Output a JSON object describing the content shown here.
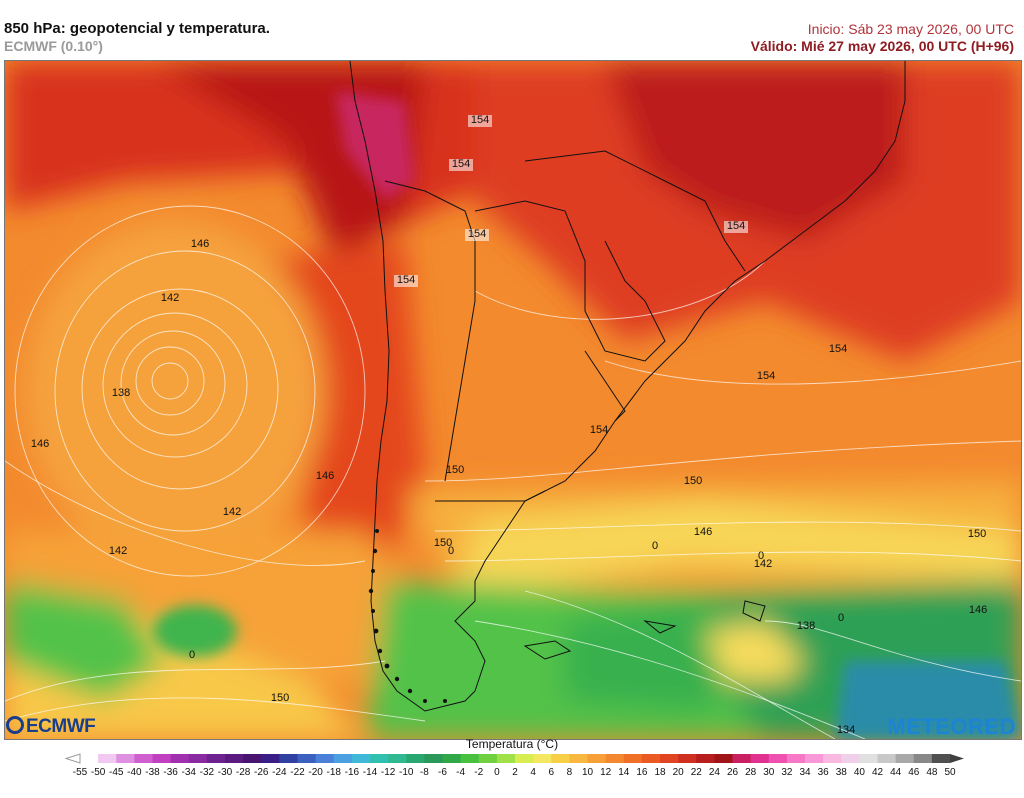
{
  "header": {
    "title": "850 hPa: geopotencial y temperatura.",
    "model": "ECMWF (0.10°)",
    "init": "Inicio: Sáb 23 may 2026, 00 UTC",
    "valid": "Válido: Mié 27 may 2026, 00 UTC (H+96)"
  },
  "logos": {
    "left": "ECMWF",
    "right": "METEORED"
  },
  "map": {
    "isohypse_labels": [
      "154",
      "154",
      "154",
      "146",
      "142",
      "138",
      "146",
      "146",
      "142",
      "142",
      "154",
      "154",
      "150",
      "150",
      "154",
      "154",
      "154",
      "150",
      "146",
      "142",
      "150",
      "146",
      "138",
      "150",
      "134",
      "0",
      "0",
      "0",
      "0",
      "0"
    ],
    "colors": {
      "land_outline": "#000000",
      "isohypse": "#ffffff"
    }
  },
  "legend": {
    "title": "Temperatura (°C)",
    "ticks": [
      "-55",
      "-50",
      "-45",
      "-40",
      "-38",
      "-36",
      "-34",
      "-32",
      "-30",
      "-28",
      "-26",
      "-24",
      "-22",
      "-20",
      "-18",
      "-16",
      "-14",
      "-12",
      "-10",
      "-8",
      "-6",
      "-4",
      "-2",
      "0",
      "2",
      "4",
      "6",
      "8",
      "10",
      "12",
      "14",
      "16",
      "18",
      "20",
      "22",
      "24",
      "26",
      "28",
      "30",
      "32",
      "34",
      "36",
      "38",
      "40",
      "42",
      "44",
      "46",
      "48",
      "50"
    ],
    "colors": [
      "#ffffff",
      "#f0c8f0",
      "#e090e0",
      "#d060d0",
      "#c040c0",
      "#a030b0",
      "#8a2aa0",
      "#6e2290",
      "#5a1a80",
      "#481470",
      "#3a1e88",
      "#3040a0",
      "#3a60c0",
      "#4a80d8",
      "#4aa0e0",
      "#40b8d8",
      "#30c0b0",
      "#30b890",
      "#28a870",
      "#2a9858",
      "#30a848",
      "#48c040",
      "#70d040",
      "#a0e048",
      "#d8ee50",
      "#f4e860",
      "#f8d048",
      "#f8b840",
      "#f8a038",
      "#f48830",
      "#f07028",
      "#ec5a24",
      "#e04420",
      "#d03020",
      "#b81e1e",
      "#a01418",
      "#c82060",
      "#e03090",
      "#f050b0",
      "#f878c8",
      "#f898d8",
      "#f8b8e0",
      "#f0d0e8",
      "#e0e0e0",
      "#c8c8c8",
      "#a8a8a8",
      "#888888",
      "#505050"
    ]
  }
}
